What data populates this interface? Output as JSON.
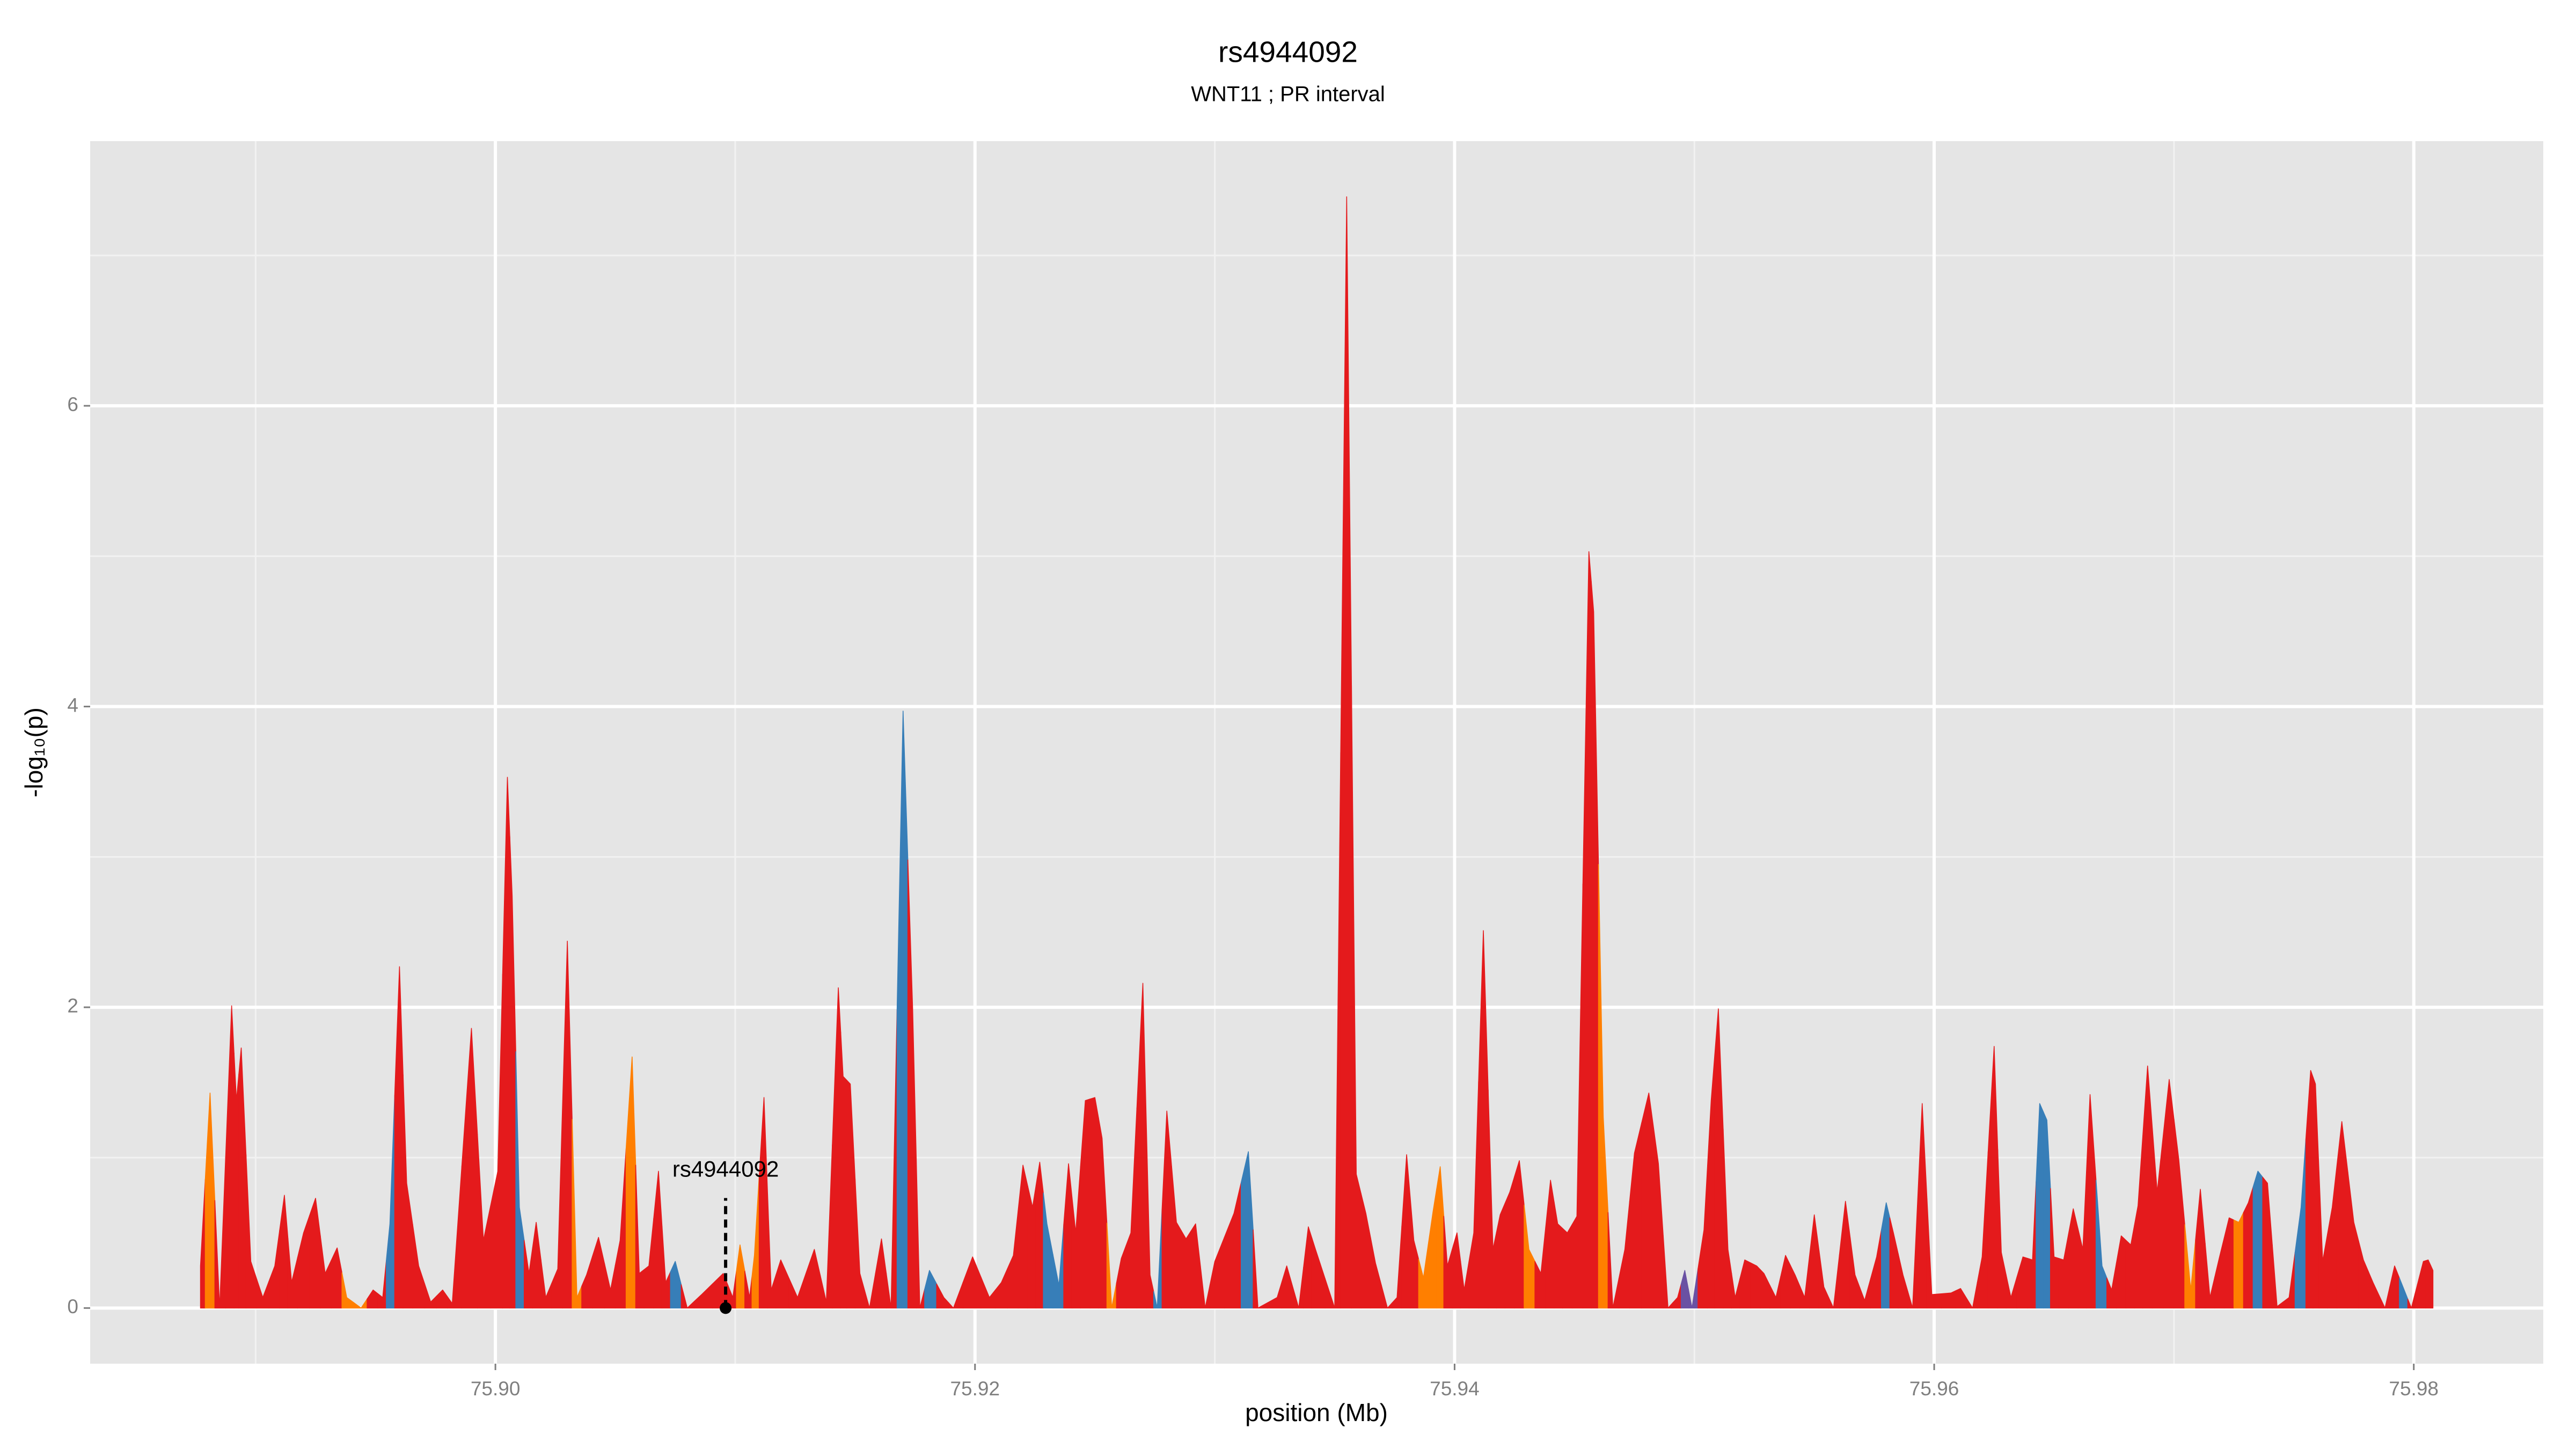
{
  "chart_data": {
    "type": "area",
    "title": "rs4944092",
    "subtitle": "WNT11 ; PR interval",
    "x_label": "position (Mb)",
    "y_label": "-log₁₀(p)",
    "xlim": [
      75.8831,
      75.9854
    ],
    "ylim": [
      -0.37,
      7.76
    ],
    "xticks": [
      {
        "value": 75.9,
        "label": "75.90"
      },
      {
        "value": 75.92,
        "label": "75.92"
      },
      {
        "value": 75.94,
        "label": "75.94"
      },
      {
        "value": 75.96,
        "label": "75.96"
      },
      {
        "value": 75.98,
        "label": "75.98"
      }
    ],
    "yticks": [
      0,
      2,
      4,
      6
    ],
    "minor_xticks": [
      75.89,
      75.91,
      75.93,
      75.95,
      75.97
    ],
    "minor_yticks": [
      1,
      3,
      5,
      7
    ],
    "grid": true,
    "annotation": {
      "label": "rs4944092",
      "x": 75.9096,
      "y": 0
    },
    "x": [
      75.8877,
      75.8881,
      75.8885,
      75.889,
      75.8892,
      75.8894,
      75.8898,
      75.8903,
      75.8908,
      75.8912,
      75.8915,
      75.892,
      75.8925,
      75.8929,
      75.8934,
      75.8938,
      75.8944,
      75.8949,
      75.8953,
      75.8956,
      75.896,
      75.8963,
      75.8968,
      75.8973,
      75.8978,
      75.8982,
      75.899,
      75.8995,
      75.9001,
      75.9005,
      75.9007,
      75.901,
      75.9014,
      75.9017,
      75.9021,
      75.9026,
      75.903,
      75.9034,
      75.9038,
      75.9043,
      75.9048,
      75.9052,
      75.9057,
      75.906,
      75.9064,
      75.9068,
      75.9071,
      75.9075,
      75.908,
      75.9086,
      75.9095,
      75.9099,
      75.9102,
      75.9106,
      75.9108,
      75.9112,
      75.9115,
      75.9119,
      75.9126,
      75.9133,
      75.9138,
      75.9143,
      75.9145,
      75.9148,
      75.9152,
      75.9156,
      75.9161,
      75.9165,
      75.917,
      75.9174,
      75.9177,
      75.9181,
      75.9187,
      75.9191,
      75.9199,
      75.9206,
      75.9211,
      75.9216,
      75.922,
      75.9224,
      75.9227,
      75.923,
      75.9235,
      75.9239,
      75.9242,
      75.9246,
      75.925,
      75.9253,
      75.9257,
      75.9261,
      75.9265,
      75.927,
      75.9273,
      75.9276,
      75.928,
      75.9284,
      75.9288,
      75.9292,
      75.9296,
      75.93,
      75.9308,
      75.9314,
      75.9318,
      75.9326,
      75.933,
      75.9335,
      75.9339,
      75.9342,
      75.935,
      75.9355,
      75.9359,
      75.9363,
      75.9367,
      75.9372,
      75.9376,
      75.938,
      75.9383,
      75.9387,
      75.9391,
      75.9394,
      75.9397,
      75.9401,
      75.9404,
      75.9408,
      75.9412,
      75.9416,
      75.9419,
      75.9423,
      75.9427,
      75.9431,
      75.9436,
      75.944,
      75.9443,
      75.9447,
      75.9451,
      75.9456,
      75.9458,
      75.9462,
      75.9466,
      75.9471,
      75.9475,
      75.9481,
      75.9485,
      75.9489,
      75.9493,
      75.9496,
      75.9499,
      75.9504,
      75.9507,
      75.951,
      75.9514,
      75.9517,
      75.9521,
      75.9526,
      75.9529,
      75.9534,
      75.9538,
      75.9542,
      75.9546,
      75.955,
      75.9554,
      75.9558,
      75.9563,
      75.9567,
      75.9571,
      75.9576,
      75.958,
      75.9583,
      75.9587,
      75.9591,
      75.9595,
      75.9599,
      75.9607,
      75.9611,
      75.9616,
      75.962,
      75.9625,
      75.9628,
      75.9632,
      75.9637,
      75.9641,
      75.9644,
      75.9647,
      75.965,
      75.9654,
      75.9658,
      75.9662,
      75.9665,
      75.967,
      75.9674,
      75.9678,
      75.9682,
      75.9685,
      75.9689,
      75.9693,
      75.9698,
      75.9702,
      75.9707,
      75.9711,
      75.9715,
      75.9719,
      75.9723,
      75.9727,
      75.9731,
      75.9735,
      75.9739,
      75.9743,
      75.9748,
      75.9753,
      75.9757,
      75.9759,
      75.9762,
      75.9766,
      75.977,
      75.9775,
      75.9779,
      75.9783,
      75.9788,
      75.9792,
      75.9796,
      75.9799,
      75.9804,
      75.9806,
      75.9808
    ],
    "values": [
      0.28,
      1.43,
      0,
      2.01,
      1.38,
      1.73,
      0.31,
      0.07,
      0.28,
      0.75,
      0.17,
      0.5,
      0.73,
      0.23,
      0.4,
      0.07,
      0,
      0.12,
      0.07,
      0.56,
      2.27,
      0.83,
      0.28,
      0.04,
      0.12,
      0.03,
      1.86,
      0.45,
      0.91,
      3.53,
      2.74,
      0.67,
      0.23,
      0.57,
      0.07,
      0.26,
      2.44,
      0.07,
      0.22,
      0.47,
      0.12,
      0.45,
      1.67,
      0.23,
      0.28,
      0.91,
      0.17,
      0.31,
      0,
      0.09,
      0.23,
      0.07,
      0.42,
      0.07,
      0.35,
      1.4,
      0.12,
      0.32,
      0.07,
      0.39,
      0.04,
      2.13,
      1.54,
      1.49,
      0.23,
      0,
      0.46,
      0,
      3.97,
      1.99,
      0,
      0.25,
      0.07,
      0,
      0.34,
      0.07,
      0.17,
      0.35,
      0.95,
      0.67,
      0.97,
      0.56,
      0.15,
      0.96,
      0.5,
      1.38,
      1.4,
      1.13,
      0,
      0.33,
      0.5,
      2.16,
      0.22,
      0,
      1.31,
      0.57,
      0.46,
      0.56,
      0,
      0.31,
      0.63,
      1.04,
      0,
      0.07,
      0.28,
      0,
      0.54,
      0.39,
      0,
      7.39,
      0.89,
      0.63,
      0.3,
      0,
      0.07,
      1.02,
      0.45,
      0.2,
      0.64,
      0.94,
      0.28,
      0.5,
      0.12,
      0.5,
      2.51,
      0.39,
      0.62,
      0.77,
      0.98,
      0.39,
      0.23,
      0.85,
      0.56,
      0.5,
      0.61,
      5.03,
      4.63,
      1.27,
      0,
      0.39,
      1.03,
      1.43,
      0.96,
      0,
      0.07,
      0.25,
      0,
      0.52,
      1.38,
      1.99,
      0.39,
      0.07,
      0.32,
      0.28,
      0.23,
      0.07,
      0.35,
      0.22,
      0.07,
      0.62,
      0.14,
      0,
      0.71,
      0.22,
      0.05,
      0.34,
      0.7,
      0.5,
      0.22,
      0,
      1.36,
      0.09,
      0.1,
      0.13,
      0,
      0.34,
      1.74,
      0.37,
      0.07,
      0.34,
      0.32,
      1.36,
      1.25,
      0.34,
      0.32,
      0.66,
      0.39,
      1.42,
      0.28,
      0.12,
      0.48,
      0.42,
      0.68,
      1.61,
      0.77,
      1.52,
      0.99,
      0.12,
      0.79,
      0.07,
      0.34,
      0.6,
      0.57,
      0.7,
      0.91,
      0.83,
      0.01,
      0.07,
      0.67,
      1.58,
      1.49,
      0.31,
      0.67,
      1.24,
      0.57,
      0.32,
      0.17,
      0,
      0.28,
      0.12,
      0,
      0.31,
      0.32,
      0.25
    ],
    "colors": [
      "#e41a1c",
      "#ff7f00",
      "#e41a1c",
      "#e41a1c",
      "#e41a1c",
      "#e41a1c",
      "#e41a1c",
      "#e41a1c",
      "#e41a1c",
      "#e41a1c",
      "#e41a1c",
      "#e41a1c",
      "#e41a1c",
      "#e41a1c",
      "#e41a1c",
      "#ff7f00",
      "#ff7f00",
      "#e41a1c",
      "#e41a1c",
      "#377eb8",
      "#e41a1c",
      "#e41a1c",
      "#e41a1c",
      "#e41a1c",
      "#e41a1c",
      "#e41a1c",
      "#e41a1c",
      "#e41a1c",
      "#e41a1c",
      "#e41a1c",
      "#e41a1c",
      "#377eb8",
      "#e41a1c",
      "#e41a1c",
      "#e41a1c",
      "#e41a1c",
      "#e41a1c",
      "#ff7f00",
      "#e41a1c",
      "#e41a1c",
      "#e41a1c",
      "#e41a1c",
      "#ff7f00",
      "#e41a1c",
      "#e41a1c",
      "#e41a1c",
      "#e41a1c",
      "#377eb8",
      "#e41a1c",
      "#e41a1c",
      "#e41a1c",
      "#e41a1c",
      "#ff7f00",
      "#e41a1c",
      "#ff7f00",
      "#e41a1c",
      "#e41a1c",
      "#e41a1c",
      "#e41a1c",
      "#e41a1c",
      "#e41a1c",
      "#e41a1c",
      "#e41a1c",
      "#e41a1c",
      "#e41a1c",
      "#e41a1c",
      "#e41a1c",
      "#e41a1c",
      "#377eb8",
      "#e41a1c",
      "#e41a1c",
      "#377eb8",
      "#e41a1c",
      "#e41a1c",
      "#e41a1c",
      "#e41a1c",
      "#e41a1c",
      "#e41a1c",
      "#e41a1c",
      "#e41a1c",
      "#e41a1c",
      "#377eb8",
      "#377eb8",
      "#e41a1c",
      "#e41a1c",
      "#e41a1c",
      "#e41a1c",
      "#e41a1c",
      "#ff7f00",
      "#e41a1c",
      "#e41a1c",
      "#e41a1c",
      "#e41a1c",
      "#377eb8",
      "#e41a1c",
      "#e41a1c",
      "#e41a1c",
      "#e41a1c",
      "#e41a1c",
      "#e41a1c",
      "#e41a1c",
      "#377eb8",
      "#e41a1c",
      "#e41a1c",
      "#e41a1c",
      "#e41a1c",
      "#e41a1c",
      "#e41a1c",
      "#e41a1c",
      "#e41a1c",
      "#e41a1c",
      "#e41a1c",
      "#e41a1c",
      "#e41a1c",
      "#e41a1c",
      "#e41a1c",
      "#e41a1c",
      "#ff7f00",
      "#ff7f00",
      "#ff7f00",
      "#e41a1c",
      "#e41a1c",
      "#e41a1c",
      "#e41a1c",
      "#e41a1c",
      "#e41a1c",
      "#e41a1c",
      "#e41a1c",
      "#e41a1c",
      "#ff7f00",
      "#e41a1c",
      "#e41a1c",
      "#e41a1c",
      "#e41a1c",
      "#e41a1c",
      "#e41a1c",
      "#e41a1c",
      "#ff7f00",
      "#e41a1c",
      "#e41a1c",
      "#e41a1c",
      "#e41a1c",
      "#e41a1c",
      "#e41a1c",
      "#e41a1c",
      "#6a51a3",
      "#6a51a3",
      "#e41a1c",
      "#e41a1c",
      "#e41a1c",
      "#e41a1c",
      "#e41a1c",
      "#e41a1c",
      "#e41a1c",
      "#e41a1c",
      "#e41a1c",
      "#e41a1c",
      "#e41a1c",
      "#e41a1c",
      "#e41a1c",
      "#e41a1c",
      "#e41a1c",
      "#e41a1c",
      "#e41a1c",
      "#e41a1c",
      "#e41a1c",
      "#377eb8",
      "#e41a1c",
      "#e41a1c",
      "#e41a1c",
      "#e41a1c",
      "#e41a1c",
      "#e41a1c",
      "#e41a1c",
      "#e41a1c",
      "#e41a1c",
      "#e41a1c",
      "#e41a1c",
      "#e41a1c",
      "#e41a1c",
      "#e41a1c",
      "#377eb8",
      "#377eb8",
      "#e41a1c",
      "#e41a1c",
      "#e41a1c",
      "#e41a1c",
      "#e41a1c",
      "#377eb8",
      "#e41a1c",
      "#e41a1c",
      "#e41a1c",
      "#e41a1c",
      "#e41a1c",
      "#e41a1c",
      "#e41a1c",
      "#e41a1c",
      "#ff7f00",
      "#e41a1c",
      "#e41a1c",
      "#e41a1c",
      "#e41a1c",
      "#ff7f00",
      "#e41a1c",
      "#377eb8",
      "#e41a1c",
      "#e41a1c",
      "#e41a1c",
      "#377eb8",
      "#e41a1c",
      "#e41a1c",
      "#e41a1c",
      "#e41a1c",
      "#e41a1c",
      "#e41a1c",
      "#e41a1c",
      "#e41a1c",
      "#e41a1c",
      "#e41a1c",
      "#377eb8",
      "#e41a1c",
      "#e41a1c",
      "#e41a1c",
      "#e41a1c"
    ]
  }
}
